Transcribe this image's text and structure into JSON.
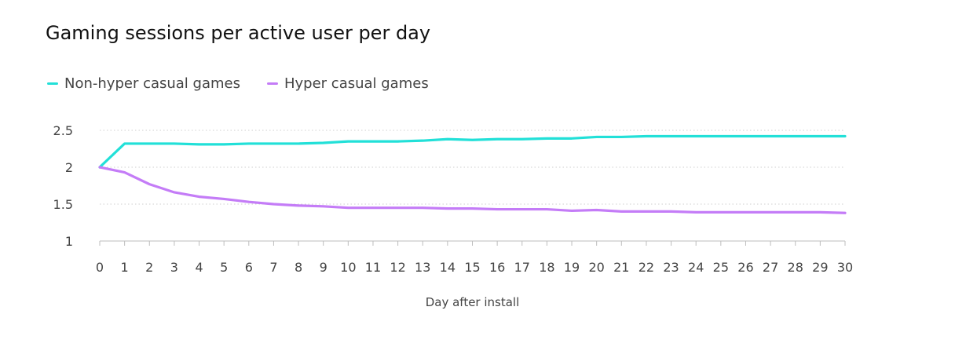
{
  "chart_data": {
    "type": "line",
    "title": "Gaming sessions per active user per day",
    "xlabel": "Day after install",
    "ylabel": "",
    "x": [
      0,
      1,
      2,
      3,
      4,
      5,
      6,
      7,
      8,
      9,
      10,
      11,
      12,
      13,
      14,
      15,
      16,
      17,
      18,
      19,
      20,
      21,
      22,
      23,
      24,
      25,
      26,
      27,
      28,
      29,
      30
    ],
    "y_ticks": [
      "1",
      "1.5",
      "2",
      "2.5"
    ],
    "ylim": [
      1,
      2.5
    ],
    "grid": "horizontal-dotted",
    "legend_position": "top-left",
    "series": [
      {
        "name": "Non-hyper casual games",
        "color": "#22e0d8",
        "values": [
          2.0,
          2.32,
          2.32,
          2.32,
          2.31,
          2.31,
          2.32,
          2.32,
          2.32,
          2.33,
          2.35,
          2.35,
          2.35,
          2.36,
          2.38,
          2.37,
          2.38,
          2.38,
          2.39,
          2.39,
          2.41,
          2.41,
          2.42,
          2.42,
          2.42,
          2.42,
          2.42,
          2.42,
          2.42,
          2.42,
          2.42
        ]
      },
      {
        "name": "Hyper casual games",
        "color": "#c47cf7",
        "values": [
          2.0,
          1.93,
          1.77,
          1.66,
          1.6,
          1.57,
          1.53,
          1.5,
          1.48,
          1.47,
          1.45,
          1.45,
          1.45,
          1.45,
          1.44,
          1.44,
          1.43,
          1.43,
          1.43,
          1.41,
          1.42,
          1.4,
          1.4,
          1.4,
          1.39,
          1.39,
          1.39,
          1.39,
          1.39,
          1.39,
          1.38
        ]
      }
    ]
  }
}
